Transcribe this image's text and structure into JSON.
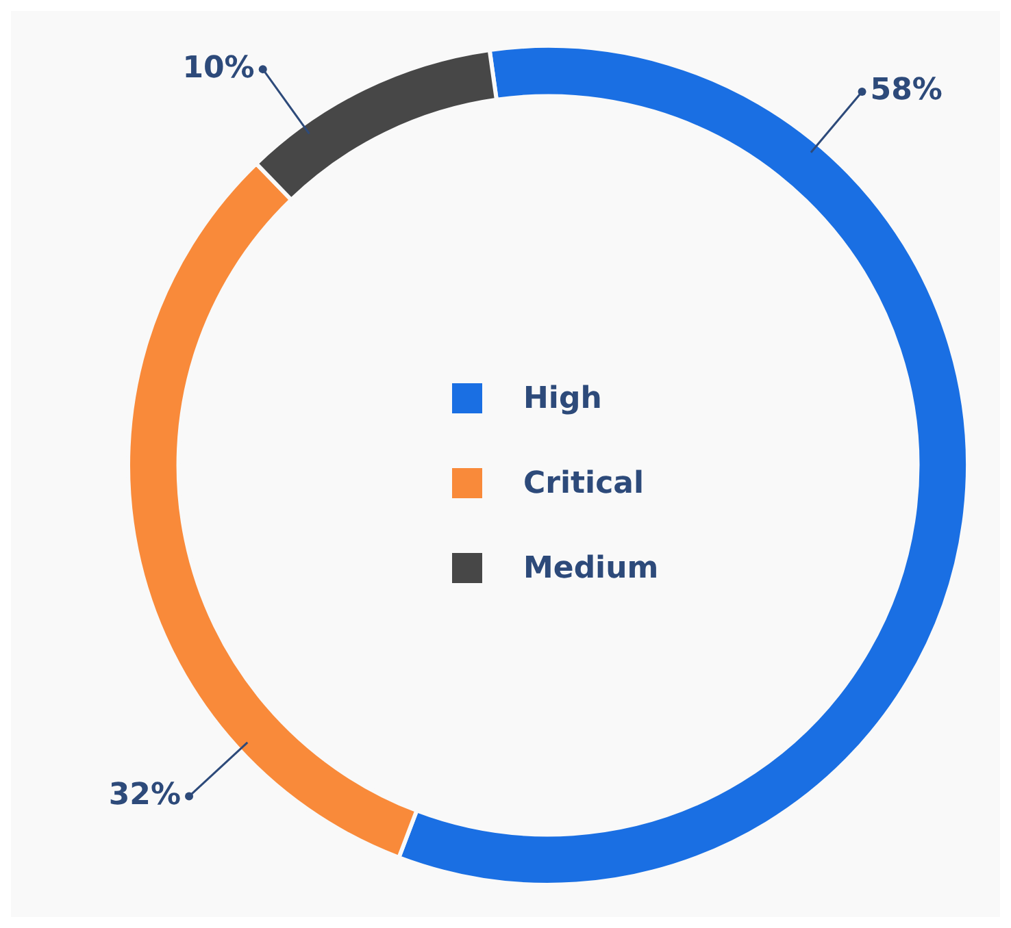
{
  "chart_data": {
    "type": "donut",
    "categories": [
      "High",
      "Critical",
      "Medium"
    ],
    "values": [
      58,
      32,
      10
    ],
    "colors": [
      "#1a6fe3",
      "#f98a3a",
      "#474747"
    ],
    "value_labels": [
      "58%",
      "32%",
      "10%"
    ],
    "legend": "center"
  }
}
